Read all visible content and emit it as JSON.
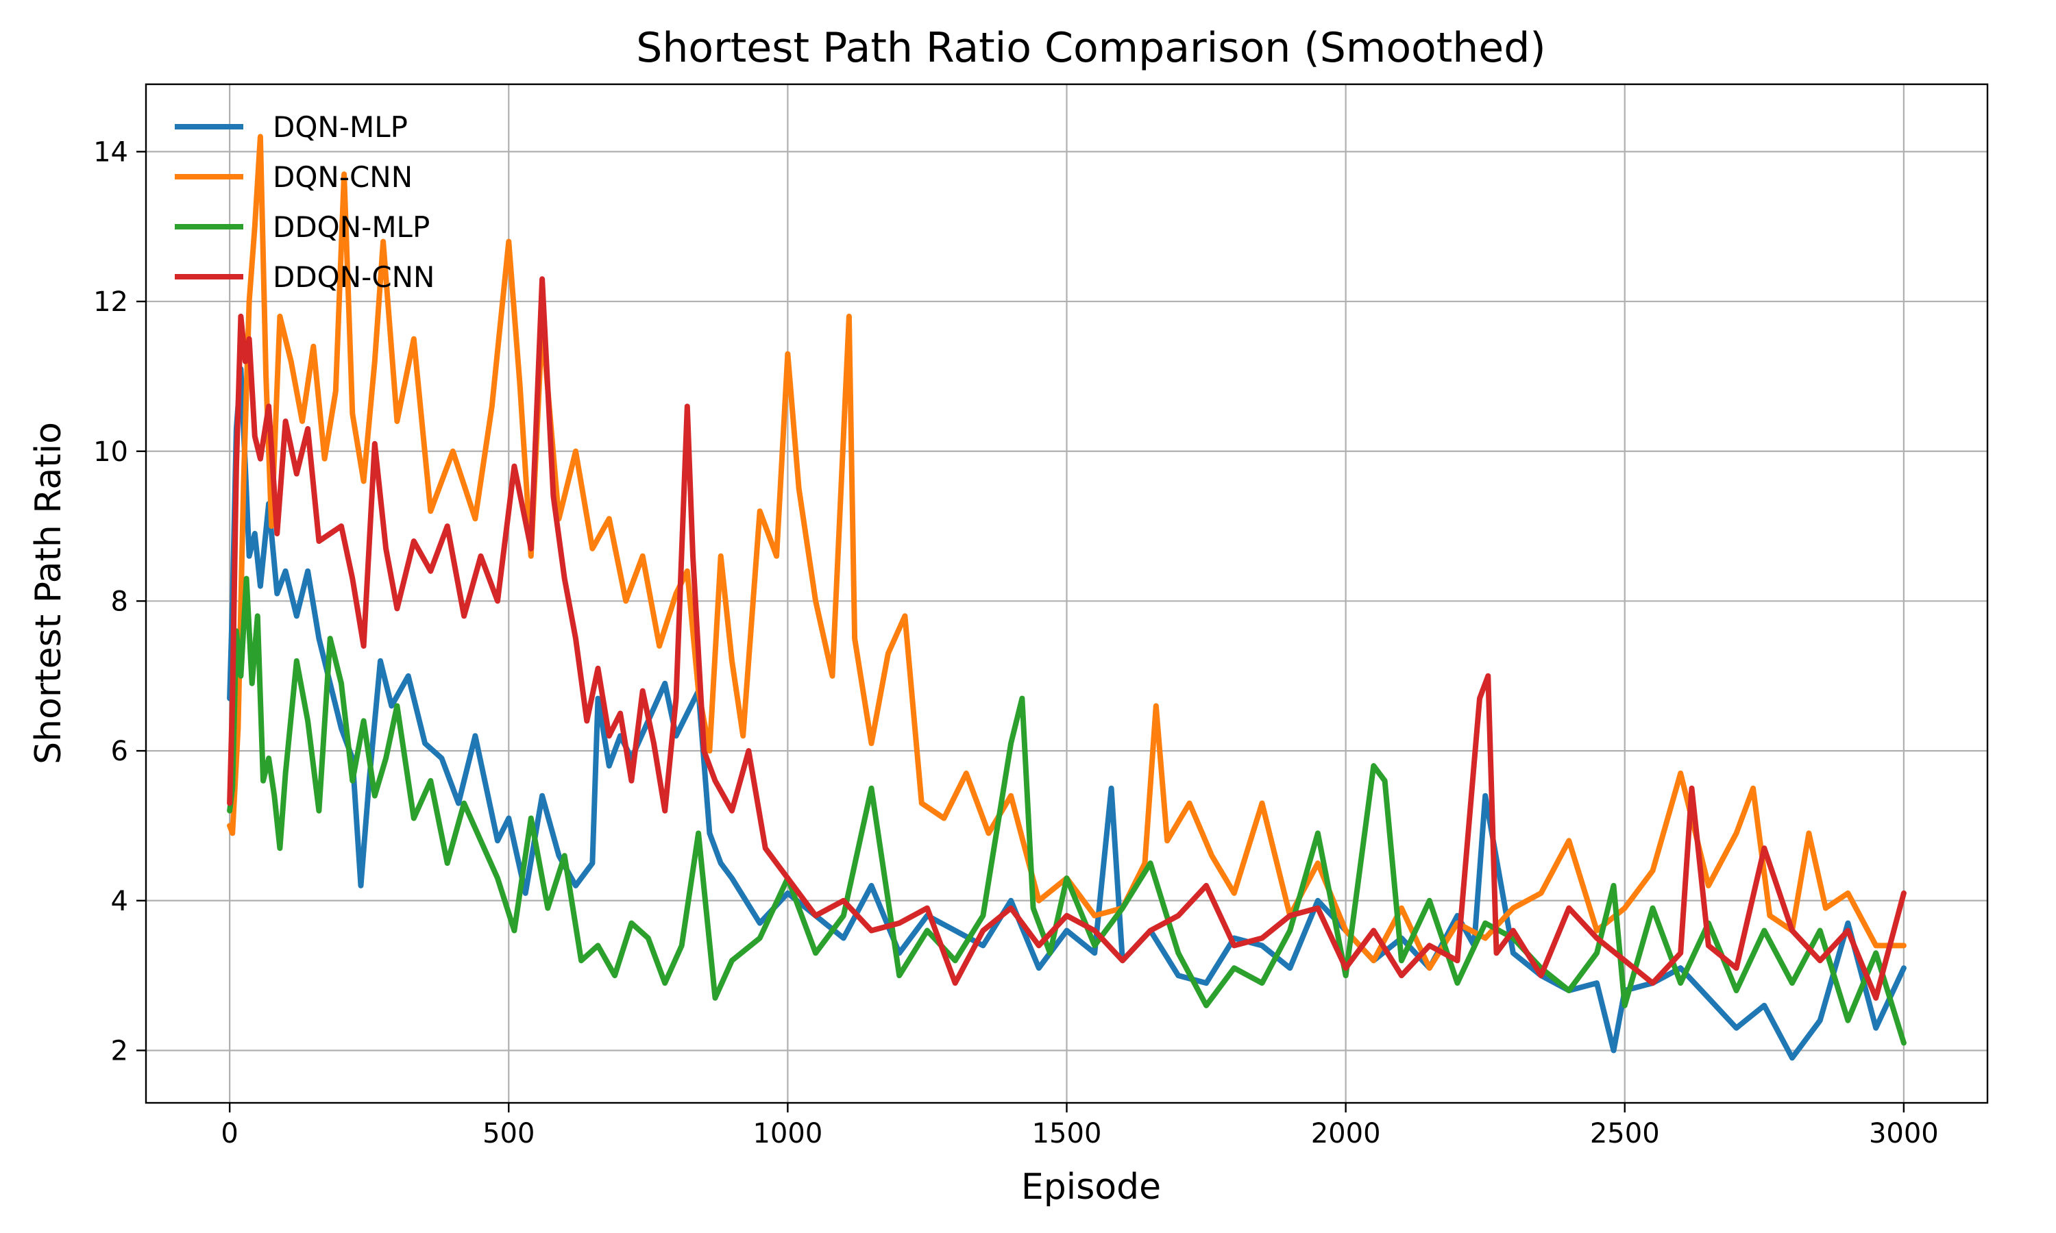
{
  "chart_data": {
    "type": "line",
    "title": "Shortest Path Ratio Comparison (Smoothed)",
    "xlabel": "Episode",
    "ylabel": "Shortest Path Ratio",
    "xlim": [
      -150,
      3150
    ],
    "ylim": [
      1.3,
      14.9
    ],
    "xticks": [
      0,
      500,
      1000,
      1500,
      2000,
      2500,
      3000
    ],
    "yticks": [
      2,
      4,
      6,
      8,
      10,
      12,
      14
    ],
    "grid": true,
    "legend_position": "top-left",
    "series": [
      {
        "name": "DQN-MLP",
        "color": "#1f77b4",
        "x": [
          0,
          5,
          12,
          20,
          28,
          35,
          45,
          55,
          70,
          85,
          100,
          120,
          140,
          160,
          180,
          200,
          220,
          235,
          250,
          270,
          290,
          320,
          350,
          380,
          410,
          440,
          460,
          480,
          500,
          530,
          560,
          590,
          620,
          650,
          660,
          680,
          700,
          720,
          750,
          780,
          800,
          820,
          840,
          860,
          880,
          900,
          950,
          1000,
          1050,
          1100,
          1150,
          1200,
          1250,
          1300,
          1350,
          1400,
          1450,
          1500,
          1550,
          1580,
          1600,
          1650,
          1700,
          1750,
          1800,
          1850,
          1900,
          1950,
          2000,
          2050,
          2100,
          2150,
          2200,
          2230,
          2250,
          2300,
          2350,
          2400,
          2450,
          2480,
          2500,
          2550,
          2600,
          2650,
          2700,
          2750,
          2800,
          2850,
          2900,
          2950,
          3000
        ],
        "y": [
          6.7,
          8.0,
          10.3,
          11.1,
          9.8,
          8.6,
          8.9,
          8.2,
          9.3,
          8.1,
          8.4,
          7.8,
          8.4,
          7.5,
          6.9,
          6.3,
          5.9,
          4.2,
          5.6,
          7.2,
          6.6,
          7.0,
          6.1,
          5.9,
          5.3,
          6.2,
          5.5,
          4.8,
          5.1,
          4.1,
          5.4,
          4.6,
          4.2,
          4.5,
          6.7,
          5.8,
          6.2,
          5.9,
          6.4,
          6.9,
          6.2,
          6.5,
          6.8,
          4.9,
          4.5,
          4.3,
          3.7,
          4.1,
          3.8,
          3.5,
          4.2,
          3.3,
          3.8,
          3.6,
          3.4,
          4.0,
          3.1,
          3.6,
          3.3,
          5.5,
          3.2,
          3.6,
          3.0,
          2.9,
          3.5,
          3.4,
          3.1,
          4.0,
          3.6,
          3.2,
          3.5,
          3.1,
          3.8,
          3.4,
          5.4,
          3.3,
          3.0,
          2.8,
          2.9,
          2.0,
          2.8,
          2.9,
          3.1,
          2.7,
          2.3,
          2.6,
          1.9,
          2.4,
          3.7,
          2.3,
          3.1
        ]
      },
      {
        "name": "DQN-CNN",
        "color": "#ff7f0e",
        "x": [
          0,
          5,
          15,
          25,
          35,
          45,
          55,
          65,
          75,
          90,
          110,
          130,
          150,
          170,
          190,
          205,
          220,
          240,
          260,
          275,
          300,
          330,
          360,
          400,
          440,
          470,
          500,
          520,
          540,
          560,
          590,
          620,
          650,
          680,
          710,
          740,
          770,
          800,
          820,
          840,
          860,
          880,
          900,
          920,
          950,
          980,
          1000,
          1020,
          1050,
          1080,
          1110,
          1120,
          1150,
          1180,
          1210,
          1240,
          1280,
          1320,
          1360,
          1400,
          1450,
          1500,
          1550,
          1600,
          1640,
          1660,
          1680,
          1720,
          1760,
          1800,
          1850,
          1900,
          1950,
          2000,
          2050,
          2100,
          2150,
          2200,
          2250,
          2300,
          2350,
          2400,
          2450,
          2500,
          2550,
          2600,
          2650,
          2700,
          2730,
          2760,
          2800,
          2830,
          2860,
          2900,
          2950,
          3000
        ],
        "y": [
          5.0,
          4.9,
          6.3,
          9.6,
          12.0,
          13.0,
          14.2,
          11.0,
          9.0,
          11.8,
          11.2,
          10.4,
          11.4,
          9.9,
          10.8,
          13.7,
          10.5,
          9.6,
          11.2,
          12.8,
          10.4,
          11.5,
          9.2,
          10.0,
          9.1,
          10.6,
          12.8,
          10.9,
          8.6,
          11.7,
          9.1,
          10.0,
          8.7,
          9.1,
          8.0,
          8.6,
          7.4,
          8.1,
          8.4,
          6.8,
          6.0,
          8.6,
          7.2,
          6.2,
          9.2,
          8.6,
          11.3,
          9.5,
          8.0,
          7.0,
          11.8,
          7.5,
          6.1,
          7.3,
          7.8,
          5.3,
          5.1,
          5.7,
          4.9,
          5.4,
          4.0,
          4.3,
          3.8,
          3.9,
          4.5,
          6.6,
          4.8,
          5.3,
          4.6,
          4.1,
          5.3,
          3.8,
          4.5,
          3.6,
          3.2,
          3.9,
          3.1,
          3.7,
          3.5,
          3.9,
          4.1,
          4.8,
          3.6,
          3.9,
          4.4,
          5.7,
          4.2,
          4.9,
          5.5,
          3.8,
          3.6,
          4.9,
          3.9,
          4.1,
          3.4,
          3.4
        ]
      },
      {
        "name": "DDQN-MLP",
        "color": "#2ca02c",
        "x": [
          0,
          5,
          12,
          20,
          30,
          40,
          50,
          60,
          70,
          80,
          90,
          100,
          120,
          140,
          160,
          180,
          200,
          220,
          240,
          260,
          280,
          300,
          330,
          360,
          390,
          420,
          450,
          480,
          510,
          540,
          570,
          600,
          630,
          660,
          690,
          720,
          750,
          780,
          810,
          840,
          870,
          900,
          950,
          1000,
          1050,
          1100,
          1150,
          1200,
          1250,
          1300,
          1350,
          1400,
          1420,
          1440,
          1470,
          1500,
          1550,
          1600,
          1650,
          1700,
          1750,
          1800,
          1850,
          1900,
          1950,
          2000,
          2050,
          2070,
          2100,
          2150,
          2200,
          2250,
          2300,
          2350,
          2400,
          2450,
          2480,
          2500,
          2550,
          2600,
          2650,
          2700,
          2750,
          2800,
          2850,
          2900,
          2950,
          3000
        ],
        "y": [
          5.2,
          5.5,
          7.6,
          7.0,
          8.3,
          6.9,
          7.8,
          5.6,
          5.9,
          5.4,
          4.7,
          5.7,
          7.2,
          6.4,
          5.2,
          7.5,
          6.9,
          5.6,
          6.4,
          5.4,
          5.9,
          6.6,
          5.1,
          5.6,
          4.5,
          5.3,
          4.8,
          4.3,
          3.6,
          5.1,
          3.9,
          4.6,
          3.2,
          3.4,
          3.0,
          3.7,
          3.5,
          2.9,
          3.4,
          4.9,
          2.7,
          3.2,
          3.5,
          4.3,
          3.3,
          3.8,
          5.5,
          3.0,
          3.6,
          3.2,
          3.8,
          6.1,
          6.7,
          3.9,
          3.3,
          4.3,
          3.4,
          3.9,
          4.5,
          3.3,
          2.6,
          3.1,
          2.9,
          3.6,
          4.9,
          3.0,
          5.8,
          5.6,
          3.2,
          4.0,
          2.9,
          3.7,
          3.5,
          3.1,
          2.8,
          3.3,
          4.2,
          2.6,
          3.9,
          2.9,
          3.7,
          2.8,
          3.6,
          2.9,
          3.6,
          2.4,
          3.3,
          2.1
        ]
      },
      {
        "name": "DDQN-CNN",
        "color": "#d62728",
        "x": [
          0,
          5,
          12,
          20,
          28,
          35,
          45,
          55,
          70,
          85,
          100,
          120,
          140,
          160,
          180,
          200,
          220,
          240,
          260,
          280,
          300,
          330,
          360,
          390,
          420,
          450,
          480,
          510,
          540,
          560,
          580,
          600,
          620,
          640,
          660,
          680,
          700,
          720,
          740,
          760,
          780,
          800,
          820,
          830,
          850,
          870,
          900,
          930,
          960,
          1000,
          1050,
          1100,
          1150,
          1200,
          1250,
          1300,
          1350,
          1400,
          1450,
          1500,
          1550,
          1600,
          1650,
          1700,
          1750,
          1800,
          1850,
          1900,
          1950,
          2000,
          2050,
          2100,
          2150,
          2200,
          2240,
          2255,
          2270,
          2300,
          2350,
          2400,
          2450,
          2500,
          2550,
          2600,
          2620,
          2650,
          2700,
          2750,
          2800,
          2850,
          2900,
          2950,
          3000
        ],
        "y": [
          5.3,
          6.7,
          9.8,
          11.8,
          11.2,
          11.5,
          10.2,
          9.9,
          10.6,
          8.9,
          10.4,
          9.7,
          10.3,
          8.8,
          8.9,
          9.0,
          8.3,
          7.4,
          10.1,
          8.7,
          7.9,
          8.8,
          8.4,
          9.0,
          7.8,
          8.6,
          8.0,
          9.8,
          8.7,
          12.3,
          9.4,
          8.3,
          7.5,
          6.4,
          7.1,
          6.2,
          6.5,
          5.6,
          6.8,
          6.1,
          5.2,
          6.7,
          10.6,
          8.6,
          6.0,
          5.6,
          5.2,
          6.0,
          4.7,
          4.3,
          3.8,
          4.0,
          3.6,
          3.7,
          3.9,
          2.9,
          3.6,
          3.9,
          3.4,
          3.8,
          3.6,
          3.2,
          3.6,
          3.8,
          4.2,
          3.4,
          3.5,
          3.8,
          3.9,
          3.1,
          3.6,
          3.0,
          3.4,
          3.2,
          6.7,
          7.0,
          3.3,
          3.6,
          3.0,
          3.9,
          3.5,
          3.2,
          2.9,
          3.3,
          5.5,
          3.4,
          3.1,
          4.7,
          3.6,
          3.2,
          3.6,
          2.7,
          4.1
        ]
      }
    ]
  }
}
